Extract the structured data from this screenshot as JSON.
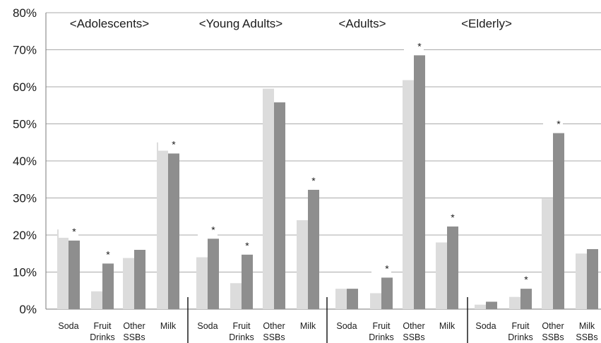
{
  "chart_data": {
    "type": "bar",
    "ylim": [
      0,
      80
    ],
    "y_ticks": [
      "0%",
      "10%",
      "20%",
      "30%",
      "40%",
      "50%",
      "60%",
      "70%",
      "80%"
    ],
    "grid": true,
    "series_colors": [
      "#dcdcdc",
      "#8e8e8e"
    ],
    "groups": [
      {
        "label": "<Adolescents>",
        "categories": [
          {
            "lines": [
              "Soda"
            ],
            "values": [
              21.5,
              18.5
            ],
            "significant": true
          },
          {
            "lines": [
              "Fruit",
              "Drinks"
            ],
            "values": [
              4.8,
              12.3
            ],
            "significant": true
          },
          {
            "lines": [
              "Other",
              "SSBs"
            ],
            "values": [
              13.8,
              16.0
            ],
            "significant": false
          },
          {
            "lines": [
              "Milk"
            ],
            "values": [
              45.0,
              42.0
            ],
            "significant": true
          }
        ]
      },
      {
        "label": "<Young Adults>",
        "categories": [
          {
            "lines": [
              "Soda"
            ],
            "values": [
              14.0,
              19.0
            ],
            "significant": true
          },
          {
            "lines": [
              "Fruit",
              "Drinks"
            ],
            "values": [
              7.0,
              14.7
            ],
            "significant": true
          },
          {
            "lines": [
              "Other",
              "SSBs"
            ],
            "values": [
              59.5,
              55.8
            ],
            "significant": false
          },
          {
            "lines": [
              "Milk"
            ],
            "values": [
              24.0,
              32.2
            ],
            "significant": true
          }
        ]
      },
      {
        "label": "<Adults>",
        "categories": [
          {
            "lines": [
              "Soda"
            ],
            "values": [
              5.5,
              5.5
            ],
            "significant": false
          },
          {
            "lines": [
              "Fruit",
              "Drinks"
            ],
            "values": [
              4.3,
              8.5
            ],
            "significant": true
          },
          {
            "lines": [
              "Other",
              "SSBs"
            ],
            "values": [
              61.8,
              68.5
            ],
            "significant": true
          },
          {
            "lines": [
              "Milk"
            ],
            "values": [
              18.0,
              22.3
            ],
            "significant": true
          }
        ]
      },
      {
        "label": "<Elderly>",
        "categories": [
          {
            "lines": [
              "Soda"
            ],
            "values": [
              1.2,
              2.0
            ],
            "significant": false
          },
          {
            "lines": [
              "Fruit",
              "Drinks"
            ],
            "values": [
              3.3,
              5.5
            ],
            "significant": true
          },
          {
            "lines": [
              "Other",
              "SSBs"
            ],
            "values": [
              29.8,
              47.5
            ],
            "significant": true
          },
          {
            "lines": [
              "Milk",
              "SSBs"
            ],
            "values": [
              15.0,
              16.2
            ],
            "significant": false
          }
        ]
      }
    ],
    "significance_marker": "*"
  }
}
